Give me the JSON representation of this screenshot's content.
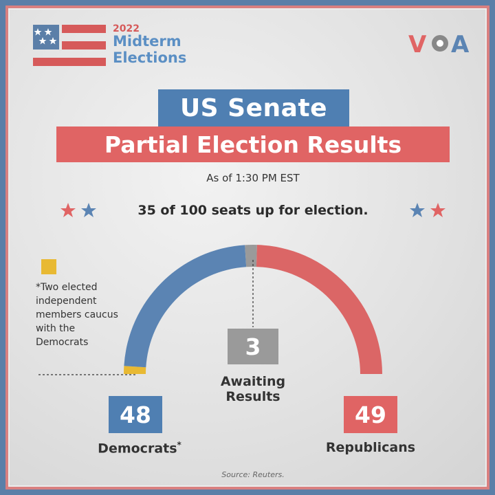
{
  "branding": {
    "year": "2022",
    "line1": "Midterm",
    "line2": "Elections",
    "voa_left": "V",
    "voa_right": "A"
  },
  "title": {
    "line1": "US Senate",
    "line2": "Partial Election Results"
  },
  "as_of": "As of 1:30 PM EST",
  "seats_note": "35 of 100 seats up for election.",
  "footnote": "*Two elected independent members caucus with the Democrats",
  "source": "Source: Reuters.",
  "colors": {
    "democrat": "#5b84b3",
    "republican": "#db6666",
    "awaiting": "#9a9a9a",
    "independent": "#e8b933"
  },
  "chart_data": {
    "type": "semicircle",
    "total": 100,
    "series": [
      {
        "key": "democrats",
        "label": "Democrats",
        "marker": "*",
        "value": 48,
        "independents_included": 2
      },
      {
        "key": "awaiting",
        "label_line1": "Awaiting",
        "label_line2": "Results",
        "value": 3
      },
      {
        "key": "republicans",
        "label": "Republicans",
        "value": 49
      }
    ]
  }
}
